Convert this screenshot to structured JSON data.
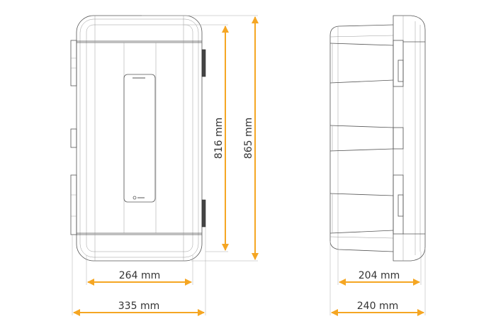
{
  "colors": {
    "dimension": "#f5a623",
    "outline": "#555555"
  },
  "front_view": {
    "dimensions": {
      "height_inner": "816 mm",
      "height_outer": "865 mm",
      "width_inner": "264 mm",
      "width_outer": "335 mm"
    }
  },
  "side_view": {
    "dimensions": {
      "depth_inner": "204 mm",
      "depth_outer": "240 mm"
    }
  }
}
